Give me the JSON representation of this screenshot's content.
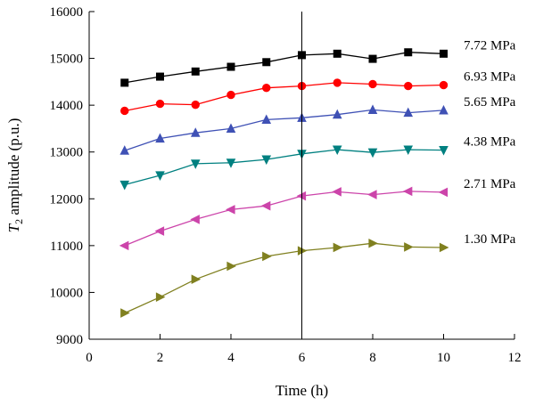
{
  "chart_data": {
    "type": "line",
    "xlabel": "Time (h)",
    "ylabel": "T2 amplitude (p.u.)",
    "ylabel_parts": {
      "symbol": "T",
      "subscript": "2",
      "rest": " amplitude (p.u.)"
    },
    "xlim": [
      0,
      12
    ],
    "ylim": [
      9000,
      16000
    ],
    "x_ticks": [
      "0",
      "2",
      "4",
      "6",
      "8",
      "10",
      "12"
    ],
    "y_ticks": [
      "9000",
      "10000",
      "11000",
      "12000",
      "13000",
      "14000",
      "15000",
      "16000"
    ],
    "x": [
      1,
      2,
      3,
      4,
      5,
      6,
      7,
      8,
      9,
      10
    ],
    "reference_line_x": 6,
    "grid": false,
    "series": [
      {
        "name": "7.72 MPa",
        "color": "#000000",
        "marker": "square",
        "values": [
          14480,
          14610,
          14720,
          14820,
          14920,
          15070,
          15100,
          14990,
          15130,
          15100
        ]
      },
      {
        "name": "6.93 MPa",
        "color": "#ff0000",
        "marker": "circle",
        "values": [
          13880,
          14030,
          14010,
          14220,
          14370,
          14410,
          14480,
          14450,
          14410,
          14430
        ]
      },
      {
        "name": "5.65 MPa",
        "color": "#3f51b5",
        "marker": "triangle-up",
        "values": [
          13030,
          13290,
          13410,
          13500,
          13690,
          13730,
          13800,
          13900,
          13840,
          13890
        ]
      },
      {
        "name": "4.38 MPa",
        "color": "#008080",
        "marker": "triangle-down",
        "values": [
          12300,
          12500,
          12750,
          12770,
          12840,
          12960,
          13050,
          12990,
          13050,
          13040
        ]
      },
      {
        "name": "2.71 MPa",
        "color": "#cc44aa",
        "marker": "triangle-left",
        "values": [
          11000,
          11310,
          11560,
          11770,
          11850,
          12060,
          12150,
          12090,
          12160,
          12140
        ]
      },
      {
        "name": "1.30 MPa",
        "color": "#808020",
        "marker": "triangle-right",
        "values": [
          9560,
          9900,
          10280,
          10560,
          10770,
          10890,
          10960,
          11050,
          10970,
          10960
        ]
      }
    ]
  }
}
